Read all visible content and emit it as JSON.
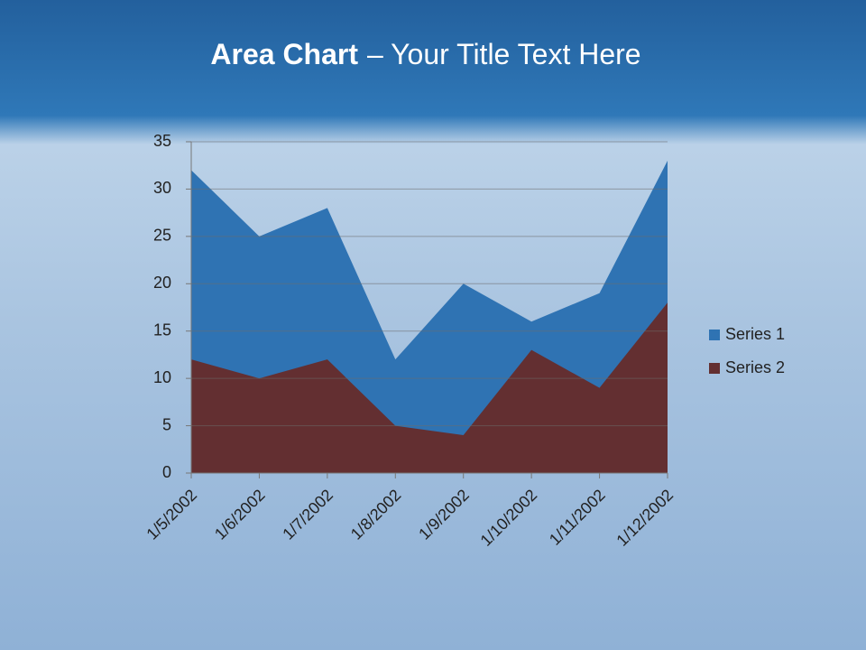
{
  "chart_data": {
    "type": "area",
    "title": [
      "Area Chart",
      "– Your Title Text Here"
    ],
    "categories": [
      "1/5/2002",
      "1/6/2002",
      "1/7/2002",
      "1/8/2002",
      "1/9/2002",
      "1/10/2002",
      "1/11/2002",
      "1/12/2002"
    ],
    "series": [
      {
        "name": "Series 1",
        "color": "#2f73b3",
        "values": [
          32,
          25,
          28,
          12,
          20,
          16,
          19,
          33
        ]
      },
      {
        "name": "Series 2",
        "color": "#632f31",
        "values": [
          12,
          10,
          12,
          5,
          4,
          13,
          9,
          18
        ]
      }
    ],
    "ylim": [
      0,
      35
    ],
    "yticks": [
      0,
      5,
      10,
      15,
      20,
      25,
      30,
      35
    ],
    "grid": true,
    "legend": "right"
  }
}
